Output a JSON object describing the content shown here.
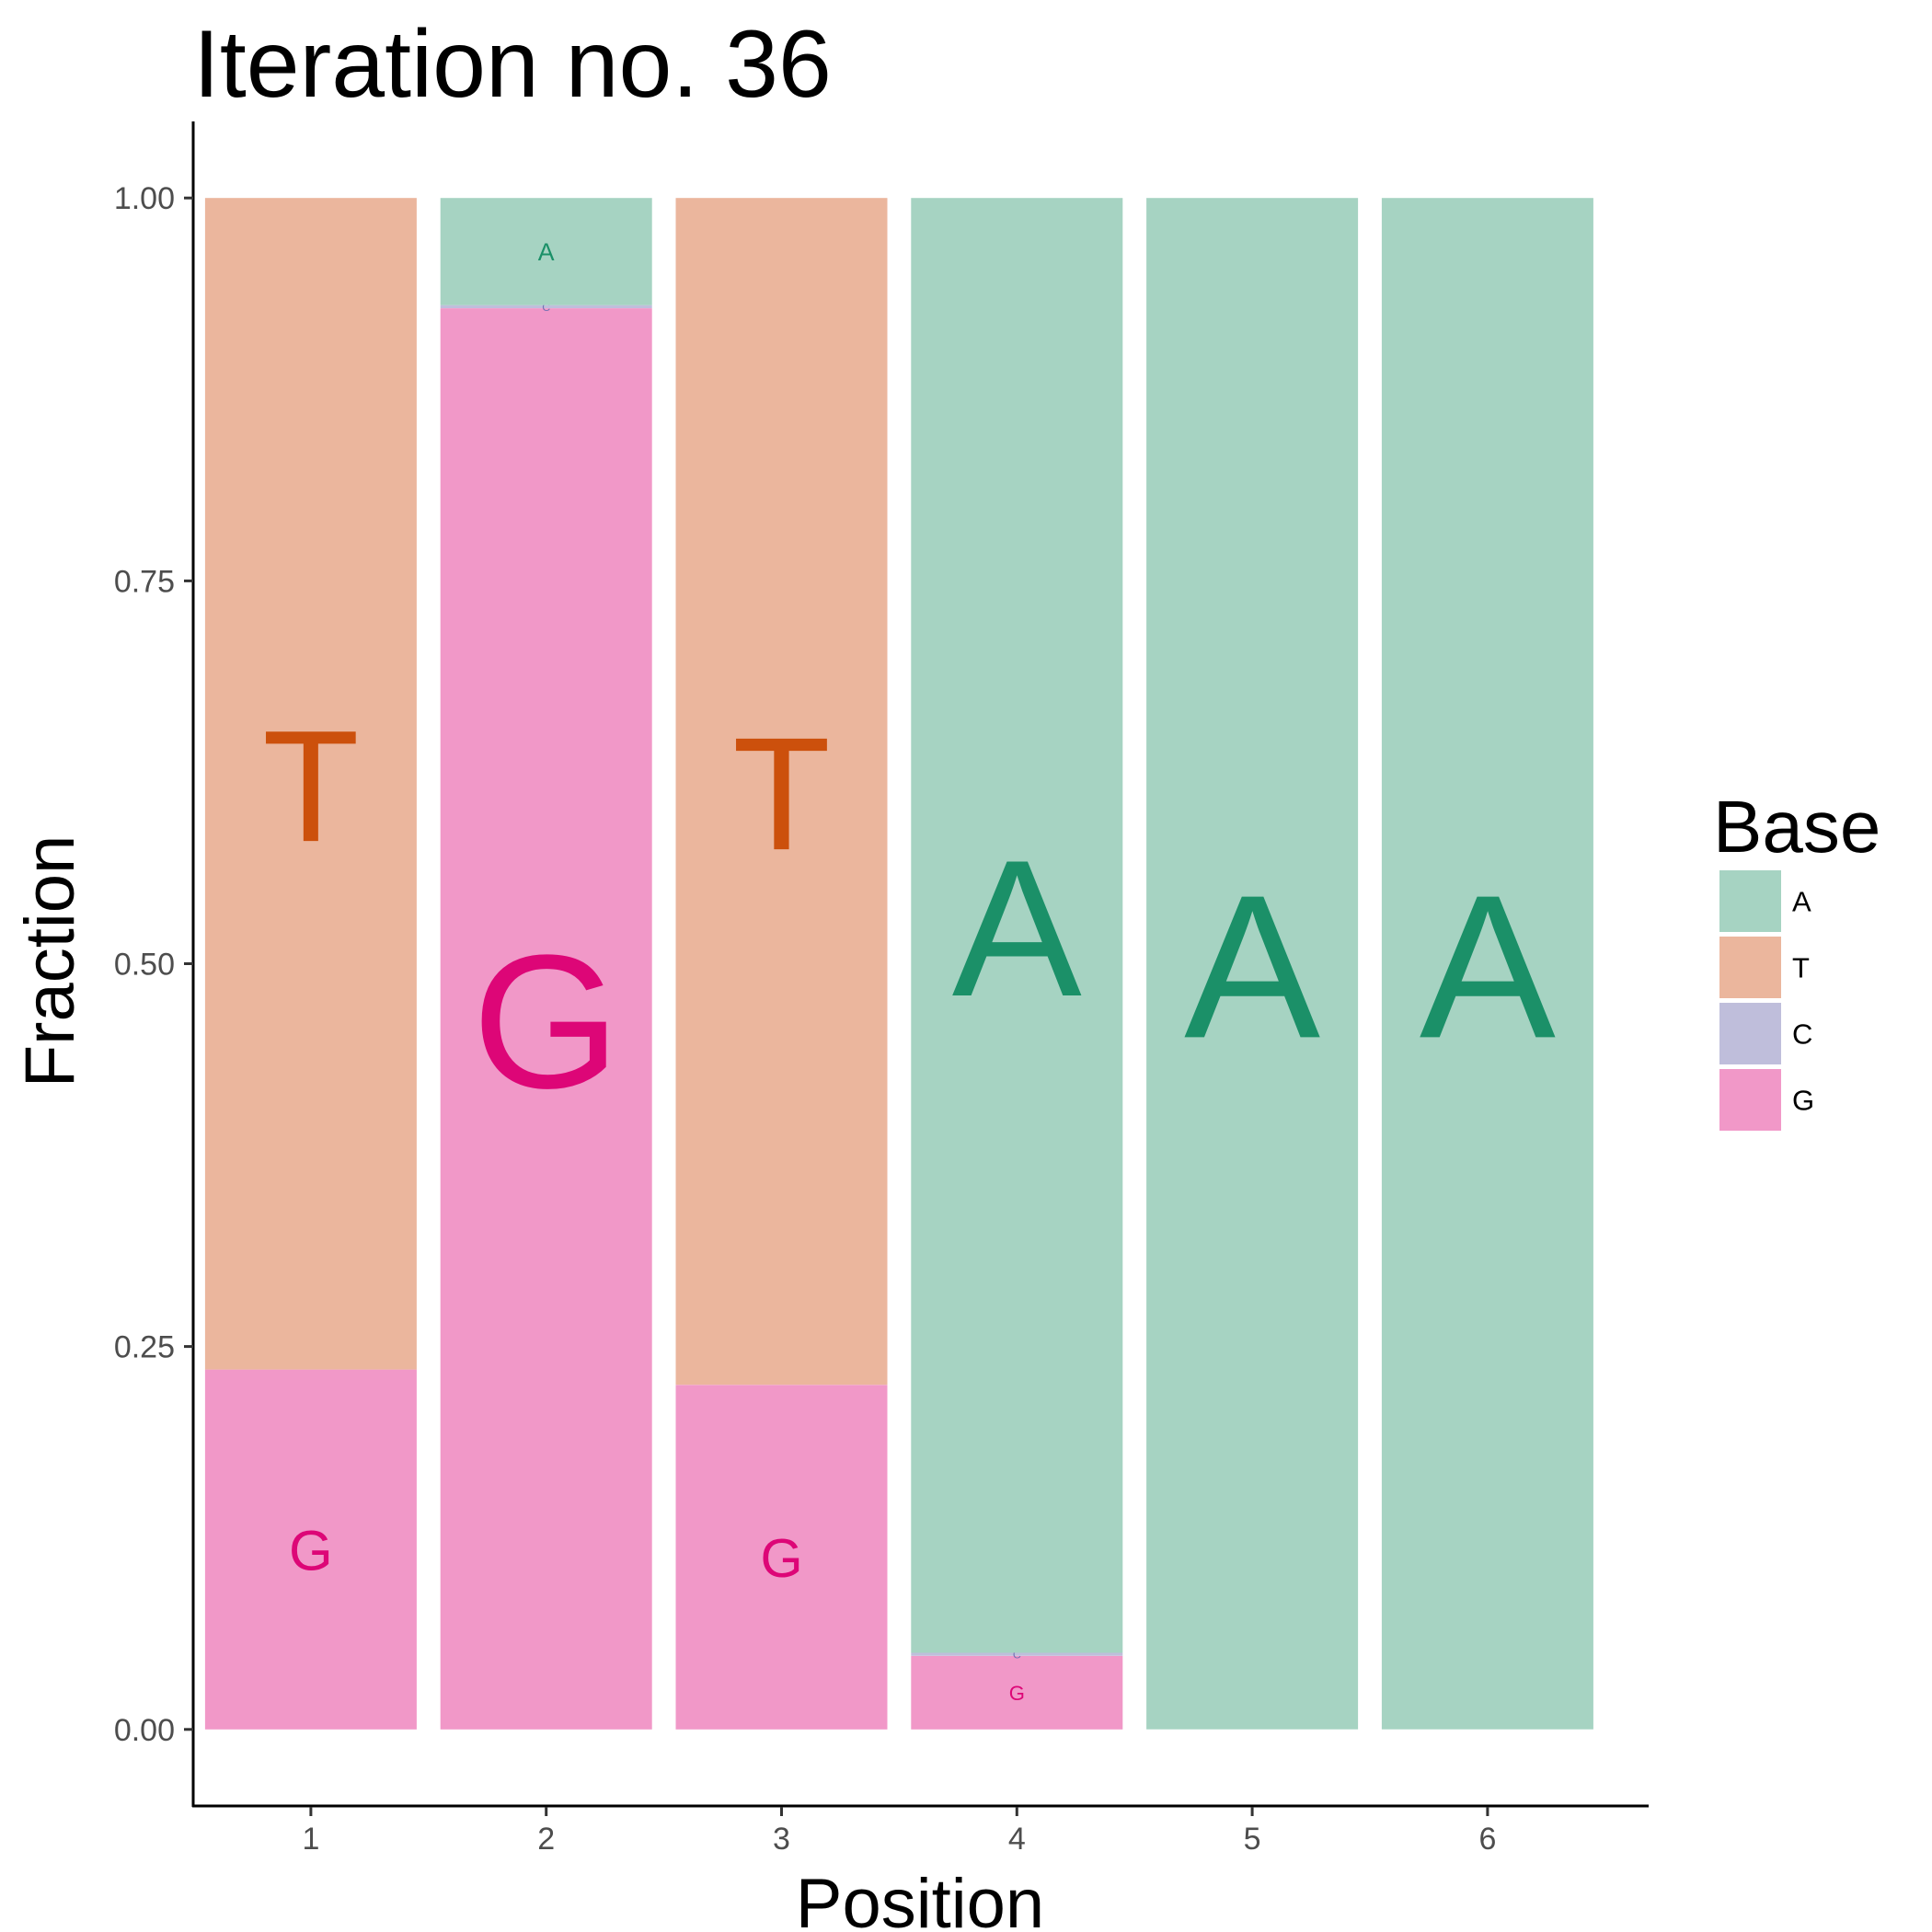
{
  "chart_data": {
    "type": "bar",
    "title": "Iteration no. 36",
    "xlabel": "Position",
    "ylabel": "Fraction",
    "categories": [
      "1",
      "2",
      "3",
      "4",
      "5",
      "6"
    ],
    "ylim": [
      -0.05,
      1.05
    ],
    "y_ticks": [
      "0.00",
      "0.25",
      "0.50",
      "0.75",
      "1.00"
    ],
    "y_tick_values": [
      0,
      0.25,
      0.5,
      0.75,
      1.0
    ],
    "stacking_order_bottom_to_top": [
      "G",
      "C",
      "T",
      "A"
    ],
    "series": [
      {
        "name": "A",
        "values": [
          0.0,
          0.07,
          0.0,
          0.95,
          1.0,
          1.0
        ]
      },
      {
        "name": "T",
        "values": [
          0.765,
          0.0,
          0.775,
          0.0,
          0.0,
          0.0
        ]
      },
      {
        "name": "C",
        "values": [
          0.0,
          0.002,
          0.0,
          0.002,
          0.0,
          0.0
        ]
      },
      {
        "name": "G",
        "values": [
          0.235,
          0.928,
          0.225,
          0.048,
          0.0,
          0.0
        ]
      }
    ],
    "legend": {
      "title": "Base",
      "position": "right",
      "entries": [
        "A",
        "T",
        "C",
        "G"
      ]
    },
    "colors": {
      "A": {
        "fill": "#a6d3c2",
        "text": "#1b9068"
      },
      "T": {
        "fill": "#ebb69d",
        "text": "#cc500c"
      },
      "C": {
        "fill": "#bfbedb",
        "text": "#7570b3"
      },
      "G": {
        "fill": "#f198c8",
        "text": "#dd0677"
      }
    },
    "grid": false
  }
}
